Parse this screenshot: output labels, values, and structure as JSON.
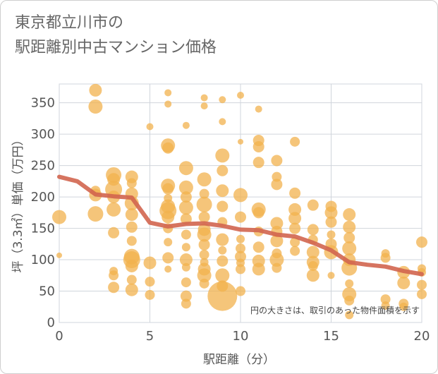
{
  "title_lines": [
    "東京都立川市の",
    "駅距離別中古マンション価格"
  ],
  "colors": {
    "bubble": "#f2b24e",
    "bubble_opacity": 0.75,
    "trend": "#d2654f",
    "grid": "#d0d5dc",
    "text": "#555555"
  },
  "chart_data": {
    "type": "scatter",
    "xlabel": "駅距離（分）",
    "ylabel": "坪（3.3㎡）単価（万円）",
    "xlim": [
      0,
      20
    ],
    "ylim": [
      0,
      380
    ],
    "xticks": [
      0,
      5,
      10,
      15,
      20
    ],
    "yticks": [
      0,
      50,
      100,
      150,
      200,
      250,
      300,
      350
    ],
    "grid": true,
    "annotation": "円の大きさは、取引のあった物件面積を示す",
    "points": [
      {
        "x": 0,
        "y": 168,
        "s": 10
      },
      {
        "x": 0,
        "y": 107,
        "s": 4
      },
      {
        "x": 2,
        "y": 370,
        "s": 9
      },
      {
        "x": 2,
        "y": 344,
        "s": 10
      },
      {
        "x": 2,
        "y": 203,
        "s": 9
      },
      {
        "x": 2,
        "y": 173,
        "s": 11
      },
      {
        "x": 2,
        "y": 210,
        "s": 7
      },
      {
        "x": 3,
        "y": 235,
        "s": 11
      },
      {
        "x": 3,
        "y": 228,
        "s": 9
      },
      {
        "x": 3,
        "y": 212,
        "s": 12
      },
      {
        "x": 3,
        "y": 200,
        "s": 9
      },
      {
        "x": 3,
        "y": 180,
        "s": 10
      },
      {
        "x": 3,
        "y": 143,
        "s": 8
      },
      {
        "x": 3,
        "y": 82,
        "s": 6
      },
      {
        "x": 3,
        "y": 75,
        "s": 7
      },
      {
        "x": 3,
        "y": 56,
        "s": 8
      },
      {
        "x": 4,
        "y": 232,
        "s": 9
      },
      {
        "x": 4,
        "y": 222,
        "s": 7
      },
      {
        "x": 4,
        "y": 205,
        "s": 9
      },
      {
        "x": 4,
        "y": 190,
        "s": 10
      },
      {
        "x": 4,
        "y": 172,
        "s": 9
      },
      {
        "x": 4,
        "y": 152,
        "s": 8
      },
      {
        "x": 4,
        "y": 130,
        "s": 7
      },
      {
        "x": 4,
        "y": 105,
        "s": 11
      },
      {
        "x": 4,
        "y": 100,
        "s": 12
      },
      {
        "x": 4,
        "y": 90,
        "s": 9
      },
      {
        "x": 4,
        "y": 68,
        "s": 7
      },
      {
        "x": 4,
        "y": 52,
        "s": 9
      },
      {
        "x": 5,
        "y": 312,
        "s": 5
      },
      {
        "x": 5,
        "y": 95,
        "s": 9
      },
      {
        "x": 5,
        "y": 65,
        "s": 7
      },
      {
        "x": 5,
        "y": 44,
        "s": 7
      },
      {
        "x": 6,
        "y": 366,
        "s": 5
      },
      {
        "x": 6,
        "y": 348,
        "s": 5
      },
      {
        "x": 6,
        "y": 282,
        "s": 10
      },
      {
        "x": 6,
        "y": 278,
        "s": 8
      },
      {
        "x": 6,
        "y": 218,
        "s": 10
      },
      {
        "x": 6,
        "y": 213,
        "s": 8
      },
      {
        "x": 6,
        "y": 198,
        "s": 6
      },
      {
        "x": 6,
        "y": 185,
        "s": 10
      },
      {
        "x": 6,
        "y": 178,
        "s": 12
      },
      {
        "x": 6,
        "y": 168,
        "s": 9
      },
      {
        "x": 6,
        "y": 150,
        "s": 7
      },
      {
        "x": 6,
        "y": 128,
        "s": 6
      },
      {
        "x": 6,
        "y": 103,
        "s": 8
      },
      {
        "x": 6,
        "y": 85,
        "s": 5
      },
      {
        "x": 7,
        "y": 314,
        "s": 5
      },
      {
        "x": 7,
        "y": 246,
        "s": 10
      },
      {
        "x": 7,
        "y": 215,
        "s": 10
      },
      {
        "x": 7,
        "y": 200,
        "s": 8
      },
      {
        "x": 7,
        "y": 183,
        "s": 10
      },
      {
        "x": 7,
        "y": 165,
        "s": 8
      },
      {
        "x": 7,
        "y": 140,
        "s": 7
      },
      {
        "x": 7,
        "y": 120,
        "s": 6
      },
      {
        "x": 7,
        "y": 100,
        "s": 9
      },
      {
        "x": 7,
        "y": 88,
        "s": 6
      },
      {
        "x": 7,
        "y": 64,
        "s": 7
      },
      {
        "x": 7,
        "y": 42,
        "s": 8
      },
      {
        "x": 7,
        "y": 30,
        "s": 7
      },
      {
        "x": 8,
        "y": 358,
        "s": 5
      },
      {
        "x": 8,
        "y": 345,
        "s": 5
      },
      {
        "x": 8,
        "y": 228,
        "s": 10
      },
      {
        "x": 8,
        "y": 205,
        "s": 7
      },
      {
        "x": 8,
        "y": 188,
        "s": 11
      },
      {
        "x": 8,
        "y": 168,
        "s": 8
      },
      {
        "x": 8,
        "y": 148,
        "s": 9
      },
      {
        "x": 8,
        "y": 140,
        "s": 10
      },
      {
        "x": 8,
        "y": 124,
        "s": 8
      },
      {
        "x": 8,
        "y": 108,
        "s": 7
      },
      {
        "x": 8,
        "y": 96,
        "s": 6
      },
      {
        "x": 8,
        "y": 85,
        "s": 9
      },
      {
        "x": 8,
        "y": 75,
        "s": 10
      },
      {
        "x": 8,
        "y": 62,
        "s": 7
      },
      {
        "x": 9,
        "y": 355,
        "s": 5
      },
      {
        "x": 9,
        "y": 320,
        "s": 5
      },
      {
        "x": 9,
        "y": 266,
        "s": 10
      },
      {
        "x": 9,
        "y": 242,
        "s": 8
      },
      {
        "x": 9,
        "y": 210,
        "s": 9
      },
      {
        "x": 9,
        "y": 185,
        "s": 8
      },
      {
        "x": 9,
        "y": 160,
        "s": 7
      },
      {
        "x": 9,
        "y": 132,
        "s": 9
      },
      {
        "x": 9,
        "y": 115,
        "s": 6
      },
      {
        "x": 9,
        "y": 98,
        "s": 8
      },
      {
        "x": 9,
        "y": 75,
        "s": 10
      },
      {
        "x": 9,
        "y": 58,
        "s": 8
      },
      {
        "x": 9,
        "y": 42,
        "s": 21
      },
      {
        "x": 10,
        "y": 362,
        "s": 5
      },
      {
        "x": 10,
        "y": 288,
        "s": 4
      },
      {
        "x": 10,
        "y": 203,
        "s": 10
      },
      {
        "x": 10,
        "y": 168,
        "s": 8
      },
      {
        "x": 10,
        "y": 133,
        "s": 6
      },
      {
        "x": 10,
        "y": 118,
        "s": 7
      },
      {
        "x": 10,
        "y": 105,
        "s": 8
      },
      {
        "x": 10,
        "y": 95,
        "s": 6
      },
      {
        "x": 10,
        "y": 85,
        "s": 7
      },
      {
        "x": 10,
        "y": 50,
        "s": 7
      },
      {
        "x": 11,
        "y": 340,
        "s": 5
      },
      {
        "x": 11,
        "y": 290,
        "s": 8
      },
      {
        "x": 11,
        "y": 280,
        "s": 8
      },
      {
        "x": 11,
        "y": 255,
        "s": 8
      },
      {
        "x": 11,
        "y": 180,
        "s": 10
      },
      {
        "x": 11,
        "y": 175,
        "s": 8
      },
      {
        "x": 11,
        "y": 145,
        "s": 7
      },
      {
        "x": 11,
        "y": 120,
        "s": 8
      },
      {
        "x": 11,
        "y": 98,
        "s": 9
      },
      {
        "x": 11,
        "y": 85,
        "s": 9
      },
      {
        "x": 12,
        "y": 258,
        "s": 8
      },
      {
        "x": 12,
        "y": 232,
        "s": 7
      },
      {
        "x": 12,
        "y": 220,
        "s": 8
      },
      {
        "x": 12,
        "y": 158,
        "s": 9
      },
      {
        "x": 12,
        "y": 145,
        "s": 8
      },
      {
        "x": 12,
        "y": 130,
        "s": 9
      },
      {
        "x": 12,
        "y": 110,
        "s": 7
      },
      {
        "x": 12,
        "y": 100,
        "s": 10
      },
      {
        "x": 12,
        "y": 87,
        "s": 7
      },
      {
        "x": 13,
        "y": 288,
        "s": 7
      },
      {
        "x": 13,
        "y": 206,
        "s": 8
      },
      {
        "x": 13,
        "y": 180,
        "s": 9
      },
      {
        "x": 13,
        "y": 166,
        "s": 9
      },
      {
        "x": 13,
        "y": 150,
        "s": 8
      },
      {
        "x": 13,
        "y": 128,
        "s": 7
      },
      {
        "x": 13,
        "y": 114,
        "s": 7
      },
      {
        "x": 14,
        "y": 187,
        "s": 8
      },
      {
        "x": 14,
        "y": 148,
        "s": 8
      },
      {
        "x": 14,
        "y": 132,
        "s": 7
      },
      {
        "x": 14,
        "y": 112,
        "s": 9
      },
      {
        "x": 14,
        "y": 96,
        "s": 9
      },
      {
        "x": 14,
        "y": 90,
        "s": 7
      },
      {
        "x": 14,
        "y": 75,
        "s": 9
      },
      {
        "x": 15,
        "y": 185,
        "s": 8
      },
      {
        "x": 15,
        "y": 175,
        "s": 9
      },
      {
        "x": 15,
        "y": 160,
        "s": 8
      },
      {
        "x": 15,
        "y": 140,
        "s": 6
      },
      {
        "x": 15,
        "y": 125,
        "s": 8
      },
      {
        "x": 15,
        "y": 112,
        "s": 10
      },
      {
        "x": 15,
        "y": 75,
        "s": 5
      },
      {
        "x": 16,
        "y": 172,
        "s": 9
      },
      {
        "x": 16,
        "y": 152,
        "s": 9
      },
      {
        "x": 16,
        "y": 135,
        "s": 8
      },
      {
        "x": 16,
        "y": 118,
        "s": 10
      },
      {
        "x": 16,
        "y": 100,
        "s": 9
      },
      {
        "x": 16,
        "y": 87,
        "s": 11
      },
      {
        "x": 16,
        "y": 62,
        "s": 6
      },
      {
        "x": 16,
        "y": 45,
        "s": 10
      },
      {
        "x": 16,
        "y": 35,
        "s": 7
      },
      {
        "x": 16,
        "y": 12,
        "s": 6
      },
      {
        "x": 18,
        "y": 110,
        "s": 6
      },
      {
        "x": 18,
        "y": 103,
        "s": 7
      },
      {
        "x": 18,
        "y": 37,
        "s": 7
      },
      {
        "x": 18,
        "y": 27,
        "s": 6
      },
      {
        "x": 19,
        "y": 80,
        "s": 9
      },
      {
        "x": 19,
        "y": 63,
        "s": 9
      },
      {
        "x": 19,
        "y": 30,
        "s": 7
      },
      {
        "x": 19,
        "y": 25,
        "s": 6
      },
      {
        "x": 20,
        "y": 128,
        "s": 8
      },
      {
        "x": 20,
        "y": 86,
        "s": 6
      },
      {
        "x": 20,
        "y": 80,
        "s": 6
      },
      {
        "x": 20,
        "y": 60,
        "s": 7
      },
      {
        "x": 20,
        "y": 45,
        "s": 7
      }
    ],
    "trend": {
      "x": [
        0,
        1,
        2,
        3,
        4,
        5,
        6,
        7,
        8,
        9,
        10,
        11,
        12,
        13,
        14,
        15,
        16,
        17,
        18,
        19,
        20
      ],
      "y": [
        232,
        225,
        204,
        201,
        199,
        159,
        153,
        157,
        158,
        154,
        148,
        147,
        140,
        137,
        127,
        115,
        96,
        92,
        89,
        82,
        77
      ]
    }
  }
}
